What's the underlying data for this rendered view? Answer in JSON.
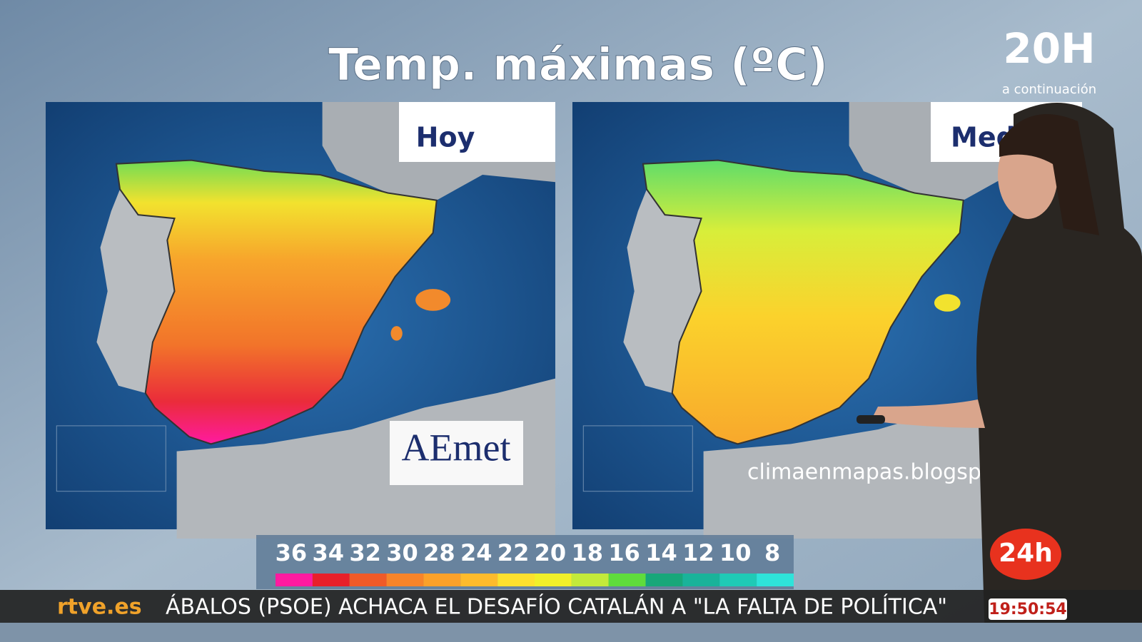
{
  "title": "Temp. máximas (ºC)",
  "maps": [
    {
      "label": "Hoy",
      "logo": "AEmet"
    },
    {
      "label": "Med",
      "credit": "climaenmapas.blogspo"
    }
  ],
  "legend": [
    {
      "value": 36,
      "color": "#ff1aa0"
    },
    {
      "value": 34,
      "color": "#e8202a"
    },
    {
      "value": 32,
      "color": "#f05a28"
    },
    {
      "value": 30,
      "color": "#f7842a"
    },
    {
      "value": 28,
      "color": "#fba12a"
    },
    {
      "value": 24,
      "color": "#fdbb2c"
    },
    {
      "value": 22,
      "color": "#fde12e"
    },
    {
      "value": 20,
      "color": "#f1f02a"
    },
    {
      "value": 18,
      "color": "#c3ea3a"
    },
    {
      "value": 16,
      "color": "#5fdc3c"
    },
    {
      "value": 14,
      "color": "#17a77a"
    },
    {
      "value": 12,
      "color": "#19b39a"
    },
    {
      "value": 10,
      "color": "#1fcab6"
    },
    {
      "value": 8,
      "color": "#2ee3da"
    }
  ],
  "program": {
    "name": "20H",
    "note": "a continuación"
  },
  "channel": "24h",
  "ticker": {
    "brand": "rtve.es",
    "headline": "ÁBALOS (PSOE) ACHACA EL DESAFÍO CATALÁN A \"LA FALTA DE POLÍTICA\"",
    "clock": "19:50:54"
  }
}
